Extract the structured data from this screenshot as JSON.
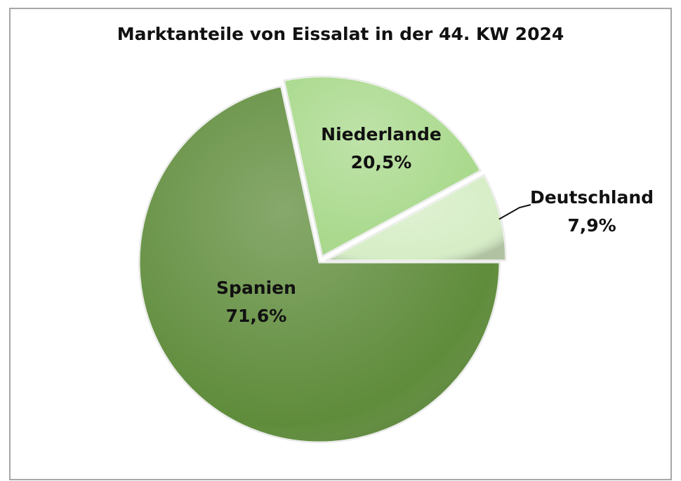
{
  "chart_data": {
    "type": "pie",
    "title": "Marktanteile von Eissalat in der 44. KW 2024",
    "categories": [
      "Spanien",
      "Niederlande",
      "Deutschland"
    ],
    "values": [
      71.6,
      20.5,
      7.9
    ],
    "value_labels": [
      "71,6%",
      "20,5%",
      "7,9%"
    ],
    "colors": [
      "#5f8c3b",
      "#a9d98c",
      "#d6edc6"
    ]
  }
}
